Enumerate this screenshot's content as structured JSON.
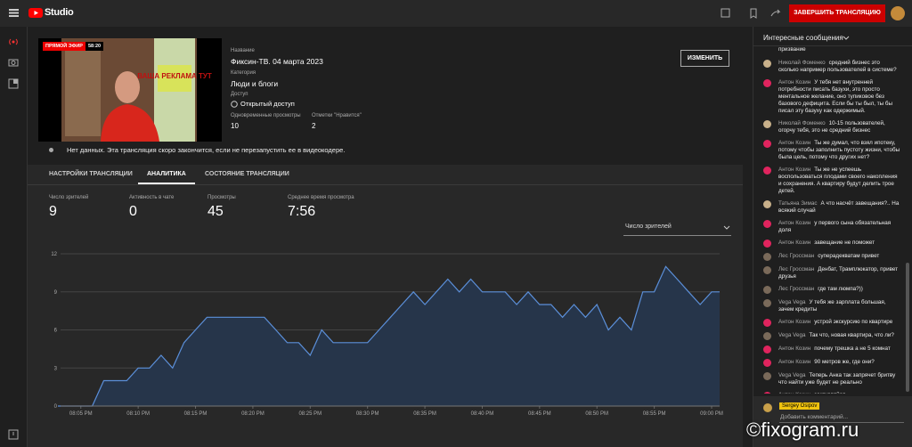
{
  "header": {
    "logo": "Studio",
    "end_button": "ЗАВЕРШИТЬ ТРАНСЛЯЦИЮ"
  },
  "stream": {
    "live_badge": "ПРЯМОЙ ЭФИР",
    "duration": "58:20",
    "thumbnail_text": "ВАША РЕКЛАМА ТУТ",
    "title_label": "Название",
    "title": "Фиксин-ТВ. 04 марта 2023",
    "category_label": "Категория",
    "category": "Люди и блоги",
    "access_label": "Доступ",
    "access": "Открытый доступ",
    "viewers_label": "Одновременные просмотры",
    "viewers": 10,
    "likes_label": "Отметки \"Нравится\"",
    "likes": 2,
    "edit_button": "ИЗМЕНИТЬ",
    "notice": "Нет данных. Эта трансляция скоро закончится, если не перезапустить ее в видеокодере."
  },
  "tabs": {
    "items": [
      "НАСТРОЙКИ ТРАНСЛЯЦИИ",
      "АНАЛИТИКА",
      "СОСТОЯНИЕ ТРАНСЛЯЦИИ"
    ],
    "active": 1
  },
  "stats": [
    {
      "label": "Число зрителей",
      "value": 9
    },
    {
      "label": "Активность в чате",
      "value": 0
    },
    {
      "label": "Просмотры",
      "value": 45
    },
    {
      "label": "Среднее время просмотра",
      "value": "7:56"
    }
  ],
  "chart_data": {
    "type": "area",
    "metric_select": "Число зрителей",
    "color": "#5b8fd9",
    "fill": "#26354a",
    "grid": true,
    "categories": [
      null,
      null,
      "08:05 PM",
      null,
      null,
      null,
      null,
      "08:10 PM",
      null,
      null,
      null,
      null,
      "08:15 PM",
      null,
      null,
      null,
      null,
      "08:20 PM",
      null,
      null,
      null,
      null,
      "08:25 PM",
      null,
      null,
      null,
      null,
      "08:30 PM",
      null,
      null,
      null,
      null,
      "08:35 PM",
      null,
      null,
      null,
      null,
      "08:40 PM",
      null,
      null,
      null,
      null,
      "08:45 PM",
      null,
      null,
      null,
      null,
      "08:50 PM",
      null,
      null,
      null,
      null,
      "08:55 PM",
      null,
      null,
      null,
      null,
      "09:00 PM"
    ],
    "values": [
      0,
      0,
      0,
      0,
      2,
      2,
      2,
      3,
      3,
      4,
      3,
      5,
      6,
      7,
      7,
      7,
      7,
      7,
      7,
      6,
      5,
      5,
      4,
      6,
      5,
      5,
      5,
      5,
      6,
      7,
      8,
      9,
      8,
      9,
      10,
      9,
      10,
      9,
      9,
      9,
      8,
      9,
      8,
      8,
      7,
      8,
      7,
      8,
      6,
      7,
      6,
      9,
      9,
      11,
      10,
      9,
      8,
      9
    ],
    "ylim": [
      0,
      12
    ],
    "yticks": [
      0,
      3,
      6,
      9,
      12
    ]
  },
  "chat": {
    "header": "Интересные сообщения",
    "messages": [
      {
        "text": "призвание"
      },
      {
        "author": "Николай Фоменко",
        "text": "средний бизнес это сколько например пользователей в системе?"
      },
      {
        "author": "Антон Козин",
        "text": "У тебя нет внутренней потребности писать базухи, это просто ментальное желание, оно тупиковое без базового дефицита. Если бы ты был, ты бы писал эту базуху как одержимый."
      },
      {
        "author": "Николай Фоменко",
        "text": "10-15 пользователей, огорчу тебя, это не средний бизнес"
      },
      {
        "author": "Антон Козин",
        "text": "Ты же думал, что взял ипотеку, потому чтобы заполнить пустоту жизни, чтобы была цель, потому что других нет?"
      },
      {
        "author": "Антон Козин",
        "text": "Ты же не успеешь воспользоваться плодами своего накопления и сохранения. А квартиру будут делить трое детей."
      },
      {
        "author": "Татьяна Зимас",
        "text": "А что насчёт завещания?.. На всякий случай"
      },
      {
        "author": "Антон Козин",
        "text": "у первого сына обязательная доля"
      },
      {
        "author": "Антон Козин",
        "text": "завещание не поможет"
      },
      {
        "author": "Лес Гроссман",
        "text": "суперадекватам привет"
      },
      {
        "author": "Лес Гроссман",
        "text": "Денбат, Трамплюкатор, привет друзья"
      },
      {
        "author": "Лес Гроссман",
        "text": "где там люмпа?))"
      },
      {
        "author": "Vega Vega",
        "text": "У тебя же зарплата большая, зачем кредиты"
      },
      {
        "author": "Антон Козин",
        "text": "устрой экскурсию по квартире"
      },
      {
        "author": "Vega Vega",
        "text": "Так что, новая квартира, что ли?"
      },
      {
        "author": "Антон Козин",
        "text": "почему трешка а не 5 комнат"
      },
      {
        "author": "Антон Козин",
        "text": "90 метров же, где они?"
      },
      {
        "author": "Vega Vega",
        "text": "Теперь Анка так запрячет бритву что найти уже будет не реально"
      },
      {
        "author": "Антон Козин",
        "text": "закругляйся"
      }
    ],
    "user": "Sergey Osipov",
    "input_placeholder": "Добавить комментарий..."
  },
  "watermark": "©fixogram.ru"
}
